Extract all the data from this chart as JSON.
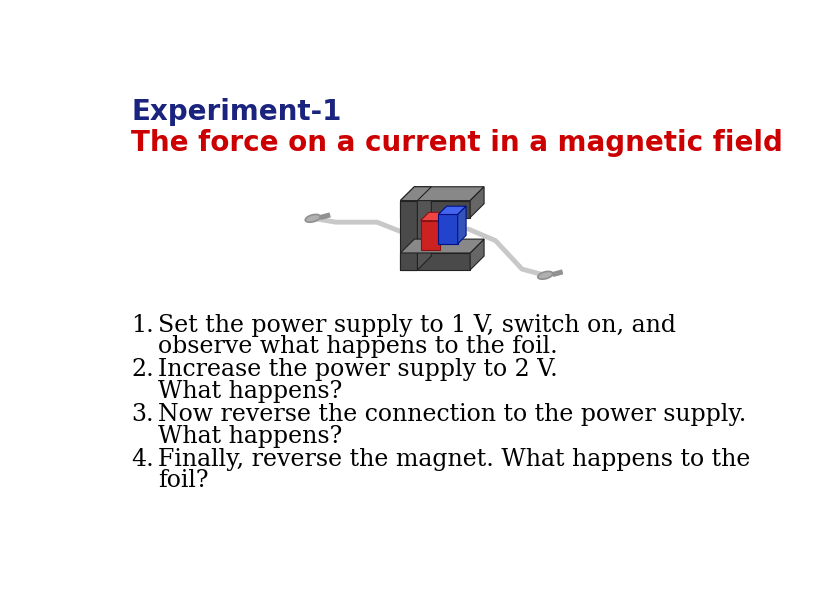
{
  "title_line1": "Experiment-1",
  "title_line2": "The force on a current in a magnetic field",
  "title_line1_color": "#1a237e",
  "title_line2_color": "#cc0000",
  "title_fontsize": 20,
  "items": [
    [
      "Set the power supply to 1 V, switch on, and",
      "observe what happens to the foil."
    ],
    [
      "Increase the power supply to 2 V.",
      "What happens?"
    ],
    [
      "Now reverse the connection to the power supply.",
      "What happens?"
    ],
    [
      "Finally, reverse the magnet. What happens to the",
      "foil?"
    ]
  ],
  "item_fontsize": 17,
  "bg_color": "#ffffff",
  "text_color": "#000000",
  "magnet_front_color": "#4a4a4a",
  "magnet_top_color": "#888888",
  "magnet_side_color": "#666666",
  "wire_color": "#c8c8c8",
  "clip_color": "#b0b0b0",
  "red_pole_color": "#cc2222",
  "blue_pole_color": "#2244cc"
}
